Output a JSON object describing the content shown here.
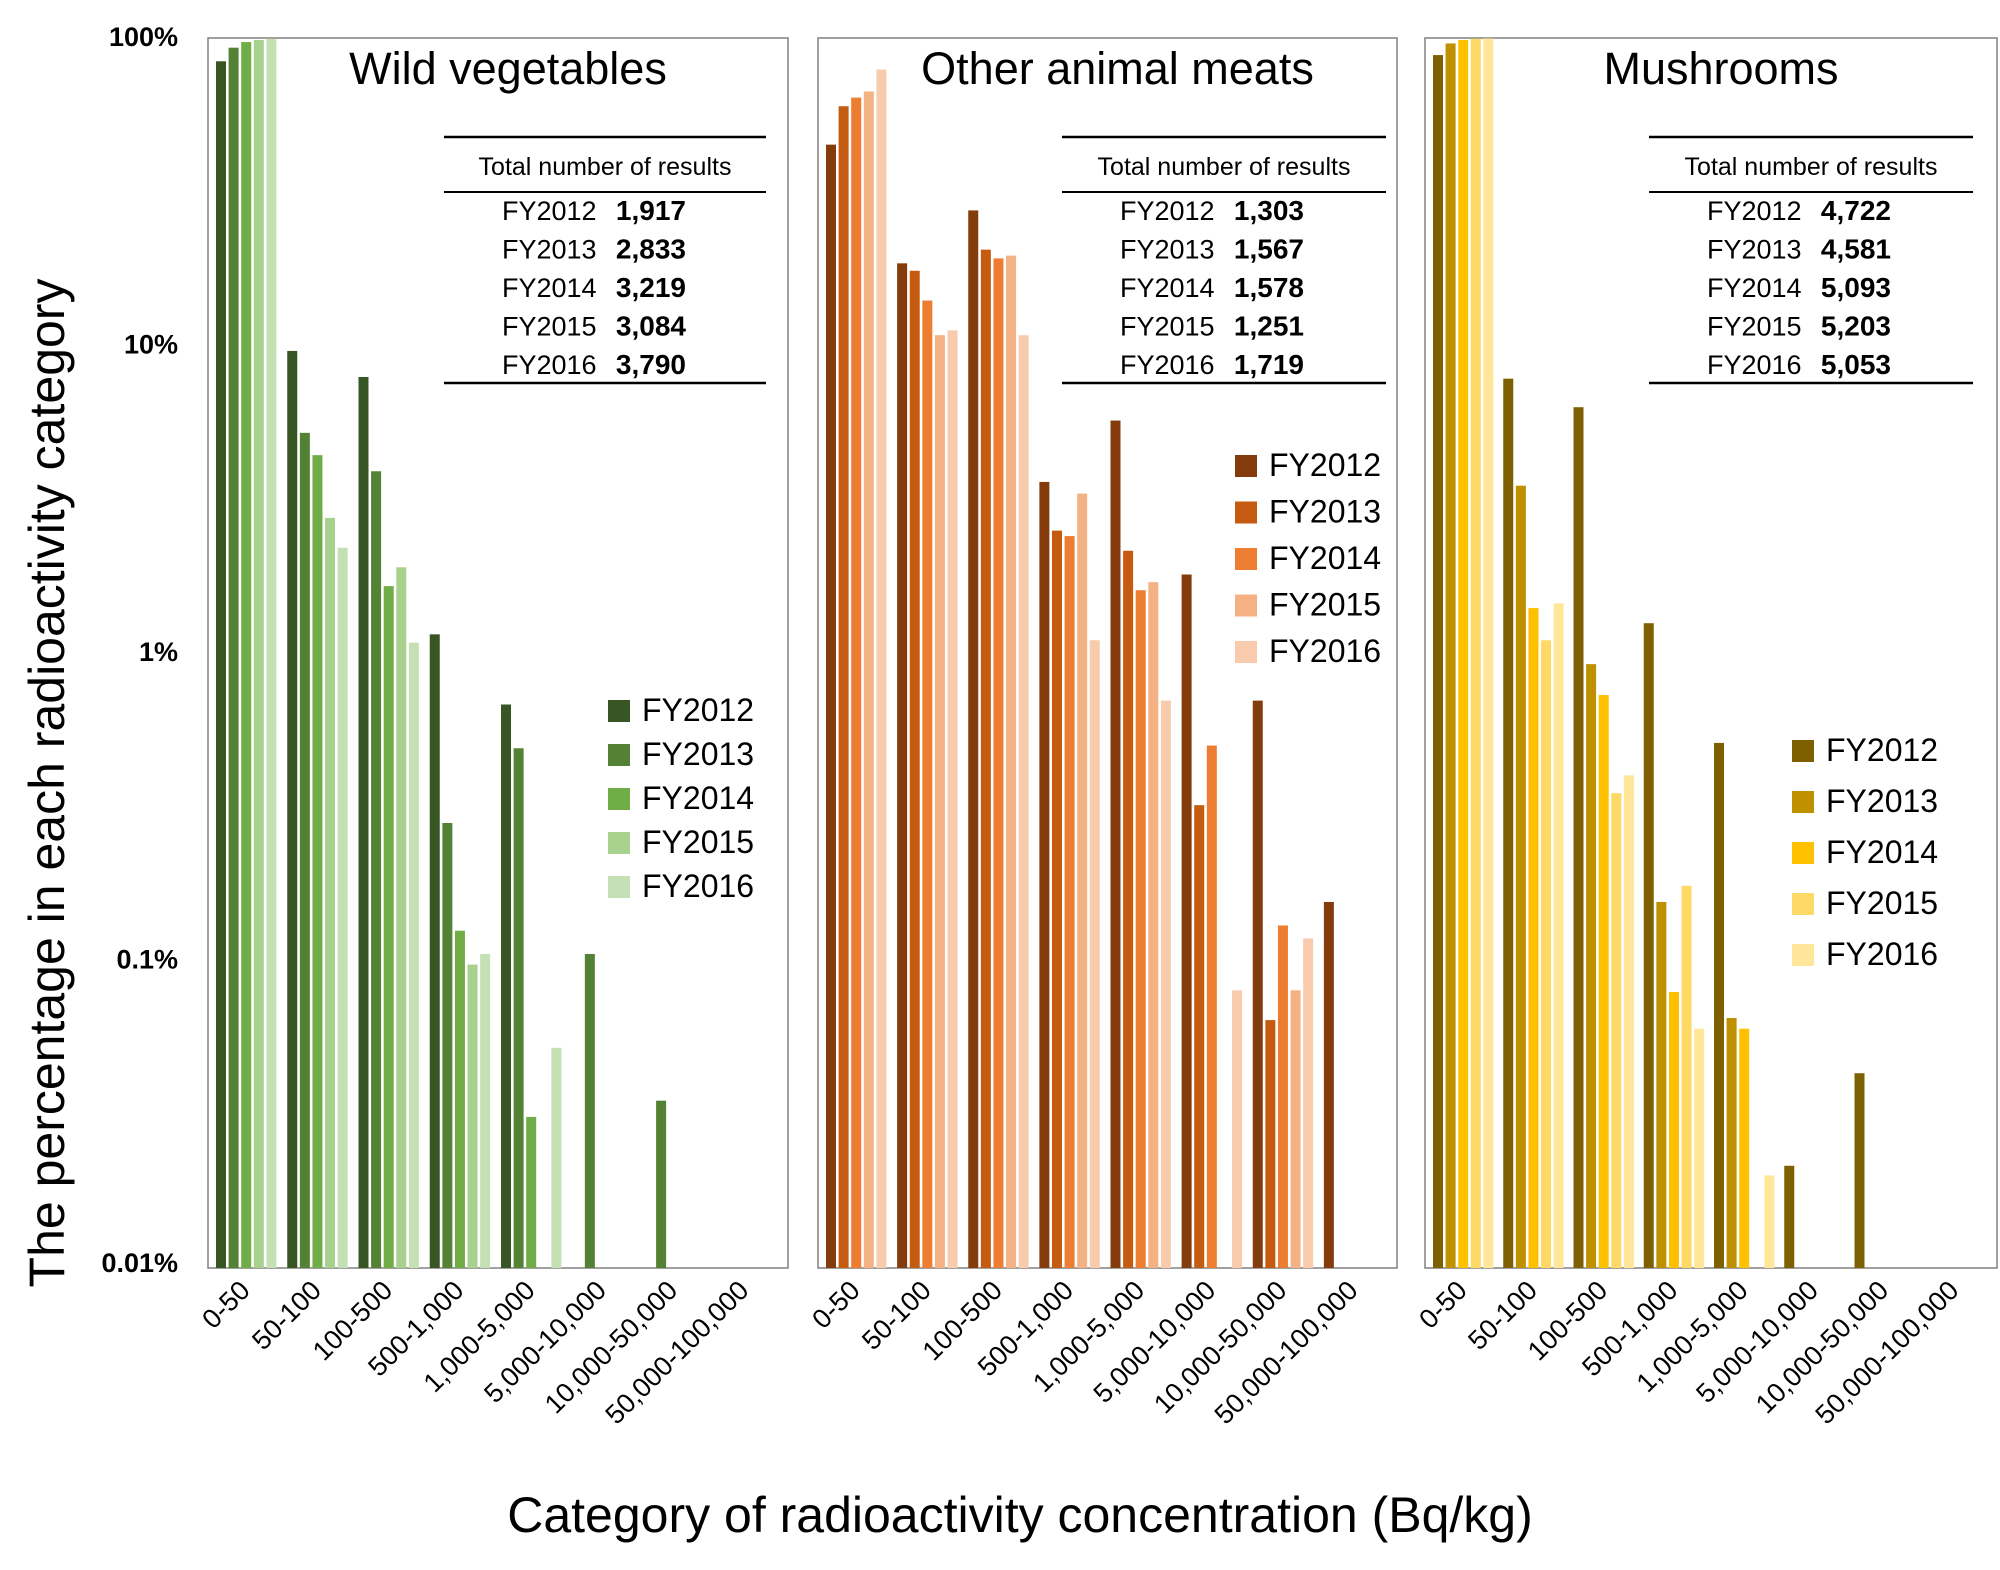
{
  "figure": {
    "ylabel": "The percentage in each radioactivity category",
    "xlabel": "Category of radioactivity concentration (Bq/kg)",
    "y_ticks": [
      "100%",
      "10%",
      "1%",
      "0.1%",
      "0.01%"
    ]
  },
  "chart_data": [
    {
      "type": "bar",
      "title": "Wild vegetables",
      "yscale": "log",
      "ylim": [
        0.01,
        100
      ],
      "categories": [
        "0-50",
        "50-100",
        "100-500",
        "500-1,000",
        "1,000-5,000",
        "5,000-10,000",
        "10,000-50,000",
        "50,000-100,000"
      ],
      "legend_position": "right",
      "series": [
        {
          "name": "FY2012",
          "color": "#375623",
          "values": [
            84,
            9.6,
            7.9,
            1.15,
            0.68,
            null,
            null,
            null
          ]
        },
        {
          "name": "FY2013",
          "color": "#548235",
          "values": [
            93,
            5.2,
            3.9,
            0.28,
            0.49,
            0.105,
            0.035,
            null
          ]
        },
        {
          "name": "FY2014",
          "color": "#70AD47",
          "values": [
            97,
            4.4,
            1.65,
            0.125,
            0.031,
            null,
            null,
            null
          ]
        },
        {
          "name": "FY2015",
          "color": "#A9D18E",
          "values": [
            98.5,
            2.75,
            1.9,
            0.097,
            null,
            null,
            null,
            null
          ]
        },
        {
          "name": "FY2016",
          "color": "#C5E0B4",
          "values": [
            99.5,
            2.2,
            1.08,
            0.105,
            0.052,
            null,
            null,
            null
          ]
        }
      ],
      "table": {
        "header": "Total number of results",
        "rows": [
          {
            "year": "FY2012",
            "count": "1,917"
          },
          {
            "year": "FY2013",
            "count": "2,833"
          },
          {
            "year": "FY2014",
            "count": "3,219"
          },
          {
            "year": "FY2015",
            "count": "3,084"
          },
          {
            "year": "FY2016",
            "count": "3,790"
          }
        ]
      }
    },
    {
      "type": "bar",
      "title": "Other animal meats",
      "yscale": "log",
      "ylim": [
        0.01,
        100
      ],
      "categories": [
        "0-50",
        "50-100",
        "100-500",
        "500-1,000",
        "1,000-5,000",
        "5,000-10,000",
        "10,000-50,000",
        "50,000-100,000"
      ],
      "legend_position": "right",
      "series": [
        {
          "name": "FY2012",
          "color": "#843C0C",
          "values": [
            45,
            18.5,
            27.5,
            3.6,
            5.7,
            1.8,
            0.7,
            0.155
          ]
        },
        {
          "name": "FY2013",
          "color": "#C55A11",
          "values": [
            60,
            17.5,
            20.5,
            2.5,
            2.15,
            0.32,
            0.064,
            null
          ]
        },
        {
          "name": "FY2014",
          "color": "#ED7D31",
          "values": [
            64,
            14,
            19.2,
            2.4,
            1.6,
            0.5,
            0.13,
            null
          ]
        },
        {
          "name": "FY2015",
          "color": "#F4B183",
          "values": [
            67,
            10.8,
            19.6,
            3.3,
            1.7,
            null,
            0.08,
            null
          ]
        },
        {
          "name": "FY2016",
          "color": "#F8CBAD",
          "values": [
            79,
            11.2,
            10.8,
            1.1,
            0.7,
            0.08,
            0.118,
            null
          ]
        }
      ],
      "table": {
        "header": "Total number of results",
        "rows": [
          {
            "year": "FY2012",
            "count": "1,303"
          },
          {
            "year": "FY2013",
            "count": "1,567"
          },
          {
            "year": "FY2014",
            "count": "1,578"
          },
          {
            "year": "FY2015",
            "count": "1,251"
          },
          {
            "year": "FY2016",
            "count": "1,719"
          }
        ]
      }
    },
    {
      "type": "bar",
      "title": "Mushrooms",
      "yscale": "log",
      "ylim": [
        0.01,
        100
      ],
      "categories": [
        "0-50",
        "50-100",
        "100-500",
        "500-1,000",
        "1,000-5,000",
        "5,000-10,000",
        "10,000-50,000",
        "50,000-100,000"
      ],
      "legend_position": "right",
      "series": [
        {
          "name": "FY2012",
          "color": "#7F6000",
          "values": [
            88,
            7.8,
            6.3,
            1.25,
            0.51,
            0.0215,
            0.043,
            null
          ]
        },
        {
          "name": "FY2013",
          "color": "#BF9000",
          "values": [
            96,
            3.5,
            0.92,
            0.155,
            0.065,
            null,
            null,
            null
          ]
        },
        {
          "name": "FY2014",
          "color": "#FFC000",
          "values": [
            98.5,
            1.4,
            0.73,
            0.079,
            0.06,
            null,
            null,
            null
          ]
        },
        {
          "name": "FY2015",
          "color": "#FFD966",
          "values": [
            99.5,
            1.1,
            0.35,
            0.175,
            null,
            null,
            null,
            null
          ]
        },
        {
          "name": "FY2016",
          "color": "#FFE699",
          "values": [
            99.7,
            1.45,
            0.4,
            0.06,
            0.02,
            null,
            null,
            null
          ]
        }
      ],
      "table": {
        "header": "Total number of results",
        "rows": [
          {
            "year": "FY2012",
            "count": "4,722"
          },
          {
            "year": "FY2013",
            "count": "4,581"
          },
          {
            "year": "FY2014",
            "count": "5,093"
          },
          {
            "year": "FY2015",
            "count": "5,203"
          },
          {
            "year": "FY2016",
            "count": "5,053"
          }
        ]
      }
    }
  ]
}
